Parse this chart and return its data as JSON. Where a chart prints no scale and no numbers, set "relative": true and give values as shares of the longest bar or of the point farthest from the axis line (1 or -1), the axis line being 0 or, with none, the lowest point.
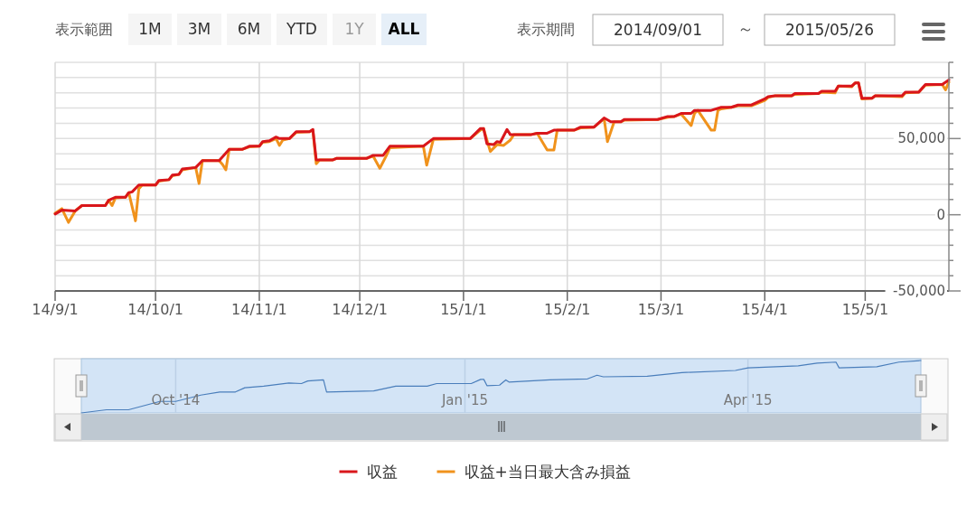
{
  "chart_data": [
    {
      "type": "other",
      "annotations": [
        "表示範囲",
        "1M",
        "3M",
        "6M",
        "YTD",
        "1Y",
        "ALL",
        "表示期間",
        "2014/09/01",
        "～",
        "2015/05/26"
      ]
    },
    {
      "type": "line",
      "xlim": [
        "2014-09-01",
        "2015-05-26"
      ],
      "xticks": [
        {
          "value": "2014-09-01",
          "label": "14/9/1"
        },
        {
          "value": "2014-10-01",
          "label": "14/10/1"
        },
        {
          "value": "2014-11-01",
          "label": "14/11/1"
        },
        {
          "value": "2014-12-01",
          "label": "14/12/1"
        },
        {
          "value": "2015-01-01",
          "label": "15/1/1"
        },
        {
          "value": "2015-02-01",
          "label": "15/2/1"
        },
        {
          "value": "2015-03-01",
          "label": "15/3/1"
        },
        {
          "value": "2015-04-01",
          "label": "15/4/1"
        },
        {
          "value": "2015-05-01",
          "label": "15/5/1"
        }
      ],
      "ylim": [
        -50000,
        100000
      ],
      "yticks": [
        {
          "value": -50000,
          "label": "-50,000"
        },
        {
          "value": -40000,
          "label": null
        },
        {
          "value": -30000,
          "label": null
        },
        {
          "value": -20000,
          "label": null
        },
        {
          "value": -10000,
          "label": null
        },
        {
          "value": 0,
          "label": "0"
        },
        {
          "value": 10000,
          "label": null
        },
        {
          "value": 20000,
          "label": null
        },
        {
          "value": 30000,
          "label": null
        },
        {
          "value": 40000,
          "label": null
        },
        {
          "value": 50000,
          "label": "50,000"
        },
        {
          "value": 60000,
          "label": null
        },
        {
          "value": 70000,
          "label": null
        },
        {
          "value": 80000,
          "label": null
        },
        {
          "value": 90000,
          "label": null
        },
        {
          "value": 100000,
          "label": null
        }
      ],
      "grid": true,
      "legend": "bottom",
      "series": [
        {
          "name": "収益",
          "color": "#d9161b",
          "x": [
            "2014-09-01",
            "2014-09-03",
            "2014-09-07",
            "2014-09-09",
            "2014-09-16",
            "2014-09-17",
            "2014-09-19",
            "2014-09-22",
            "2014-09-23",
            "2014-09-24",
            "2014-09-26",
            "2014-10-01",
            "2014-10-02",
            "2014-10-05",
            "2014-10-06",
            "2014-10-08",
            "2014-10-09",
            "2014-10-13",
            "2014-10-15",
            "2014-10-20",
            "2014-10-23",
            "2014-10-27",
            "2014-10-29",
            "2014-11-01",
            "2014-11-02",
            "2014-11-04",
            "2014-11-06",
            "2014-11-07",
            "2014-11-10",
            "2014-11-12",
            "2014-11-16",
            "2014-11-17",
            "2014-11-18",
            "2014-11-23",
            "2014-11-24",
            "2014-12-03",
            "2014-12-05",
            "2014-12-08",
            "2014-12-10",
            "2014-12-20",
            "2014-12-23",
            "2015-01-03",
            "2015-01-06",
            "2015-01-07",
            "2015-01-08",
            "2015-01-10",
            "2015-01-11",
            "2015-01-12",
            "2015-01-14",
            "2015-01-15",
            "2015-01-21",
            "2015-01-23",
            "2015-01-26",
            "2015-01-28",
            "2015-02-03",
            "2015-02-05",
            "2015-02-09",
            "2015-02-12",
            "2015-02-14",
            "2015-02-17",
            "2015-02-18",
            "2015-02-28",
            "2015-03-03",
            "2015-03-05",
            "2015-03-07",
            "2015-03-10",
            "2015-03-11",
            "2015-03-16",
            "2015-03-19",
            "2015-03-22",
            "2015-03-24",
            "2015-03-28",
            "2015-04-01",
            "2015-04-02",
            "2015-04-04",
            "2015-04-09",
            "2015-04-10",
            "2015-04-17",
            "2015-04-18",
            "2015-04-22",
            "2015-04-23",
            "2015-04-27",
            "2015-04-28",
            "2015-04-29",
            "2015-04-30",
            "2015-05-03",
            "2015-05-04",
            "2015-05-12",
            "2015-05-13",
            "2015-05-17",
            "2015-05-19",
            "2015-05-24",
            "2015-05-26"
          ],
          "values": [
            500,
            3000,
            2500,
            6000,
            6000,
            9500,
            11500,
            11500,
            14500,
            15000,
            19500,
            19500,
            22500,
            23000,
            26000,
            26500,
            30000,
            31000,
            35500,
            35500,
            43000,
            43000,
            45000,
            45000,
            48000,
            48500,
            51000,
            50000,
            50000,
            54500,
            54500,
            56000,
            36000,
            36000,
            37000,
            37000,
            39000,
            39000,
            45000,
            45000,
            50000,
            50000,
            56500,
            56500,
            46500,
            46000,
            48000,
            47500,
            56000,
            52500,
            52500,
            53500,
            53500,
            55500,
            55500,
            57500,
            57500,
            63500,
            61000,
            61000,
            62500,
            62500,
            64500,
            64500,
            66500,
            66500,
            68500,
            68500,
            70500,
            70500,
            72000,
            72000,
            76000,
            77500,
            78000,
            78000,
            79500,
            79500,
            81000,
            81000,
            84500,
            84500,
            86500,
            86500,
            76500,
            76500,
            78000,
            78000,
            80500,
            80500,
            85500,
            85500,
            88500
          ]
        },
        {
          "name": "収益+当日最大含み損益",
          "color": "#f0921c",
          "x": [
            "2014-09-01",
            "2014-09-03",
            "2014-09-05",
            "2014-09-07",
            "2014-09-09",
            "2014-09-16",
            "2014-09-17",
            "2014-09-18",
            "2014-09-19",
            "2014-09-22",
            "2014-09-23",
            "2014-09-25",
            "2014-09-26",
            "2014-09-27",
            "2014-10-01",
            "2014-10-02",
            "2014-10-05",
            "2014-10-06",
            "2014-10-08",
            "2014-10-09",
            "2014-10-13",
            "2014-10-14",
            "2014-10-15",
            "2014-10-20",
            "2014-10-21",
            "2014-10-22",
            "2014-10-23",
            "2014-10-27",
            "2014-10-29",
            "2014-11-01",
            "2014-11-02",
            "2014-11-04",
            "2014-11-06",
            "2014-11-07",
            "2014-11-08",
            "2014-11-10",
            "2014-11-12",
            "2014-11-16",
            "2014-11-17",
            "2014-11-18",
            "2014-11-19",
            "2014-11-23",
            "2014-11-24",
            "2014-12-03",
            "2014-12-05",
            "2014-12-07",
            "2014-12-09",
            "2014-12-10",
            "2014-12-20",
            "2014-12-21",
            "2014-12-23",
            "2015-01-03",
            "2015-01-06",
            "2015-01-07",
            "2015-01-09",
            "2015-01-11",
            "2015-01-13",
            "2015-01-15",
            "2015-01-16",
            "2015-01-21",
            "2015-01-23",
            "2015-01-26",
            "2015-01-28",
            "2015-01-29",
            "2015-02-03",
            "2015-02-05",
            "2015-02-09",
            "2015-02-12",
            "2015-02-13",
            "2015-02-15",
            "2015-02-17",
            "2015-02-18",
            "2015-02-28",
            "2015-03-03",
            "2015-03-05",
            "2015-03-07",
            "2015-03-10",
            "2015-03-11",
            "2015-03-12",
            "2015-03-16",
            "2015-03-17",
            "2015-03-18",
            "2015-03-19",
            "2015-03-22",
            "2015-03-24",
            "2015-03-28",
            "2015-04-01",
            "2015-04-02",
            "2015-04-04",
            "2015-04-09",
            "2015-04-10",
            "2015-04-17",
            "2015-04-18",
            "2015-04-22",
            "2015-04-23",
            "2015-04-27",
            "2015-04-28",
            "2015-04-29",
            "2015-04-30",
            "2015-05-03",
            "2015-05-04",
            "2015-05-12",
            "2015-05-13",
            "2015-05-17",
            "2015-05-19",
            "2015-05-24",
            "2015-05-25",
            "2015-05-26"
          ],
          "values": [
            1000,
            4000,
            -5000,
            2500,
            6000,
            6000,
            9500,
            6000,
            11000,
            11500,
            14500,
            -4000,
            17000,
            19500,
            19500,
            22000,
            23000,
            25500,
            26500,
            29500,
            31000,
            20500,
            35500,
            35500,
            33000,
            29500,
            43000,
            43000,
            44500,
            45000,
            47500,
            48000,
            50000,
            45500,
            49000,
            50000,
            54000,
            54500,
            55500,
            33500,
            36000,
            36000,
            37000,
            37000,
            38500,
            30500,
            39000,
            44000,
            45000,
            32500,
            49500,
            50000,
            55500,
            56500,
            41500,
            46000,
            45500,
            49000,
            52500,
            52500,
            53500,
            42500,
            42500,
            55500,
            55500,
            57000,
            57500,
            63000,
            48000,
            61000,
            61000,
            62000,
            62500,
            64000,
            64500,
            66000,
            58500,
            66500,
            68500,
            55500,
            55500,
            68500,
            69500,
            70500,
            71500,
            71500,
            75000,
            77000,
            78000,
            78000,
            79000,
            79500,
            80500,
            80000,
            84500,
            84000,
            86500,
            86500,
            76000,
            76500,
            78000,
            77500,
            80000,
            80500,
            85000,
            85500,
            82000,
            87000
          ]
        }
      ]
    },
    {
      "type": "line",
      "relative": true,
      "tick_labels": "x",
      "grid": "x",
      "xlim": [
        "2014-09-01",
        "2015-05-26"
      ],
      "xticks": [
        {
          "value": "2014-10-01",
          "label": "Oct '14"
        },
        {
          "value": "2015-01-01",
          "label": "Jan '15"
        },
        {
          "value": "2015-04-01",
          "label": "Apr '15"
        }
      ],
      "series": [
        {
          "color": "#4a7ebb",
          "x": [
            "2014-09-01",
            "2014-09-09",
            "2014-09-16",
            "2014-09-26",
            "2014-10-01",
            "2014-10-09",
            "2014-10-15",
            "2014-10-20",
            "2014-10-23",
            "2014-10-29",
            "2014-11-06",
            "2014-11-10",
            "2014-11-12",
            "2014-11-17",
            "2014-11-18",
            "2014-12-03",
            "2014-12-10",
            "2014-12-20",
            "2014-12-23",
            "2015-01-03",
            "2015-01-06",
            "2015-01-07",
            "2015-01-08",
            "2015-01-12",
            "2015-01-14",
            "2015-01-15",
            "2015-01-28",
            "2015-02-09",
            "2015-02-12",
            "2015-02-14",
            "2015-02-28",
            "2015-03-11",
            "2015-03-28",
            "2015-04-01",
            "2015-04-17",
            "2015-04-23",
            "2015-04-29",
            "2015-04-30",
            "2015-05-12",
            "2015-05-19",
            "2015-05-26"
          ],
          "values": [
            0,
            0.06,
            0.06,
            0.22,
            0.22,
            0.34,
            0.4,
            0.4,
            0.48,
            0.51,
            0.57,
            0.56,
            0.61,
            0.63,
            0.4,
            0.42,
            0.51,
            0.51,
            0.56,
            0.56,
            0.64,
            0.64,
            0.52,
            0.53,
            0.63,
            0.59,
            0.63,
            0.65,
            0.72,
            0.69,
            0.7,
            0.77,
            0.81,
            0.86,
            0.9,
            0.95,
            0.97,
            0.86,
            0.88,
            0.97,
            1
          ]
        }
      ]
    }
  ]
}
